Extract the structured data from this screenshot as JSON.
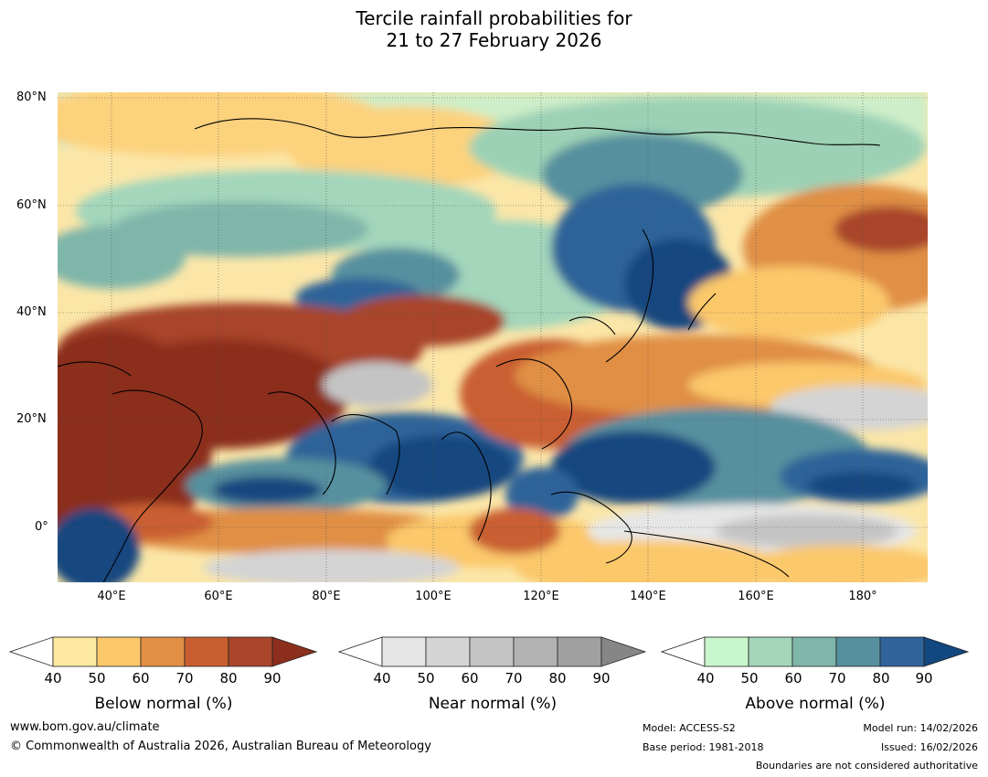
{
  "title_line1": "Tercile rainfall probabilities for",
  "title_line2": "21 to 27 February 2026",
  "map": {
    "lat_ticks": [
      "80°N",
      "60°N",
      "40°N",
      "20°N",
      "0°"
    ],
    "lon_ticks": [
      "40°E",
      "60°E",
      "80°E",
      "100°E",
      "120°E",
      "140°E",
      "160°E",
      "180°"
    ]
  },
  "legends": [
    {
      "title": "Below normal (%)",
      "labels": [
        "40",
        "50",
        "60",
        "70",
        "80",
        "90"
      ],
      "colors": [
        "#ffffff",
        "#fdeaa0",
        "#fbc86a",
        "#e08f45",
        "#c95f30",
        "#a8452a",
        "#8b2f1c"
      ]
    },
    {
      "title": "Near normal (%)",
      "labels": [
        "40",
        "50",
        "60",
        "70",
        "80",
        "90"
      ],
      "colors": [
        "#ffffff",
        "#e6e6e6",
        "#d4d4d4",
        "#c4c4c4",
        "#b2b2b2",
        "#a0a0a0",
        "#868686"
      ]
    },
    {
      "title": "Above normal (%)",
      "labels": [
        "40",
        "50",
        "60",
        "70",
        "80",
        "90"
      ],
      "colors": [
        "#ffffff",
        "#c9f7cc",
        "#a3d6bb",
        "#7fb6aa",
        "#56909f",
        "#2f6399",
        "#12477f"
      ]
    }
  ],
  "footer": {
    "url": "www.bom.gov.au/climate",
    "copyright": "© Commonwealth of Australia 2026, Australian Bureau of Meteorology",
    "model": "Model: ACCESS-S2",
    "base_period": "Base period: 1981-2018",
    "model_run": "Model run: 14/02/2026",
    "issued": "Issued: 16/02/2026",
    "disclaimer": "Boundaries are not considered authoritative"
  }
}
